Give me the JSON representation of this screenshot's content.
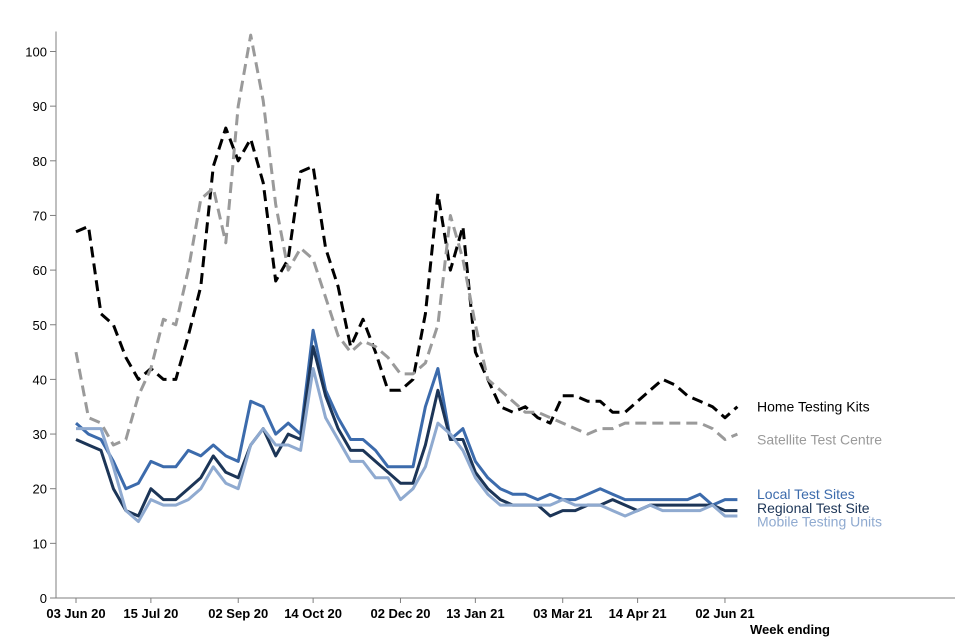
{
  "chart_data": {
    "type": "line",
    "title": "",
    "xlabel": "Week ending",
    "ylabel": "",
    "ylim": [
      0,
      100
    ],
    "y_ticks": [
      0,
      10,
      20,
      30,
      40,
      50,
      60,
      70,
      80,
      90,
      100
    ],
    "grid": false,
    "x_tick_labels": [
      {
        "index": 0,
        "label": "03 Jun 20"
      },
      {
        "index": 6,
        "label": "15 Jul 20"
      },
      {
        "index": 13,
        "label": "02 Sep 20"
      },
      {
        "index": 19,
        "label": "14 Oct 20"
      },
      {
        "index": 26,
        "label": "02 Dec 20"
      },
      {
        "index": 32,
        "label": "13 Jan 21"
      },
      {
        "index": 39,
        "label": "03 Mar 21"
      },
      {
        "index": 45,
        "label": "14 Apr 21"
      },
      {
        "index": 52,
        "label": "02 Jun 21"
      }
    ],
    "series": [
      {
        "name": "Home Testing Kits",
        "color": "#000000",
        "dashed": true,
        "values": [
          67,
          68,
          52,
          50,
          44,
          40,
          42,
          40,
          40,
          48,
          57,
          79,
          86,
          80,
          84,
          76,
          58,
          62,
          78,
          79,
          64,
          57,
          46,
          51,
          45,
          38,
          38,
          40,
          52,
          74,
          60,
          68,
          45,
          40,
          35,
          34,
          35,
          33,
          32,
          37,
          37,
          36,
          36,
          34,
          34,
          36,
          38,
          40,
          39,
          37,
          36,
          35,
          33,
          35
        ]
      },
      {
        "name": "Satellite Test Centre",
        "color": "#9a9a9a",
        "dashed": true,
        "values": [
          45,
          33,
          32,
          28,
          29,
          37,
          42,
          51,
          50,
          60,
          73,
          75,
          65,
          90,
          103,
          91,
          72,
          60,
          64,
          62,
          55,
          48,
          45,
          47,
          46,
          44,
          41,
          41,
          43,
          50,
          70,
          62,
          50,
          40,
          38,
          36,
          34,
          34,
          33,
          32,
          31,
          30,
          31,
          31,
          32,
          32,
          32,
          32,
          32,
          32,
          32,
          31,
          29,
          30
        ]
      },
      {
        "name": "Local Test Sites",
        "color": "#3c6bac",
        "dashed": false,
        "values": [
          32,
          30,
          29,
          25,
          20,
          21,
          25,
          24,
          24,
          27,
          26,
          28,
          26,
          25,
          36,
          35,
          30,
          32,
          30,
          49,
          38,
          33,
          29,
          29,
          27,
          24,
          24,
          24,
          35,
          42,
          29,
          31,
          25,
          22,
          20,
          19,
          19,
          18,
          19,
          18,
          18,
          19,
          20,
          19,
          18,
          18,
          18,
          18,
          18,
          18,
          19,
          17,
          18,
          18
        ]
      },
      {
        "name": "Regional Test Site",
        "color": "#1c3557",
        "dashed": false,
        "values": [
          29,
          28,
          27,
          20,
          16,
          15,
          20,
          18,
          18,
          20,
          22,
          26,
          23,
          22,
          28,
          31,
          26,
          30,
          29,
          46,
          37,
          31,
          27,
          27,
          25,
          23,
          21,
          21,
          28,
          38,
          29,
          29,
          23,
          20,
          18,
          17,
          17,
          17,
          15,
          16,
          16,
          17,
          17,
          18,
          17,
          16,
          17,
          17,
          17,
          17,
          17,
          17,
          16,
          16
        ]
      },
      {
        "name": "Mobile Testing Units",
        "color": "#8faad0",
        "dashed": false,
        "values": [
          31,
          31,
          31,
          24,
          16,
          14,
          18,
          17,
          17,
          18,
          20,
          24,
          21,
          20,
          28,
          31,
          28,
          28,
          27,
          42,
          33,
          29,
          25,
          25,
          22,
          22,
          18,
          20,
          24,
          32,
          30,
          27,
          22,
          19,
          17,
          17,
          17,
          17,
          17,
          18,
          17,
          17,
          17,
          16,
          15,
          16,
          17,
          16,
          16,
          16,
          16,
          17,
          15,
          15
        ]
      }
    ],
    "legend": [
      {
        "name": "Home Testing Kits",
        "color": "#000000",
        "y_anchor": 35
      },
      {
        "name": "Satellite Test Centre",
        "color": "#9a9a9a",
        "y_anchor": 29
      },
      {
        "name": "Local Test Sites",
        "color": "#3c6bac",
        "y_anchor": 19
      },
      {
        "name": "Regional Test Site",
        "color": "#1c3557",
        "y_anchor": 16.5
      },
      {
        "name": "Mobile Testing Units",
        "color": "#8faad0",
        "y_anchor": 14
      }
    ]
  }
}
